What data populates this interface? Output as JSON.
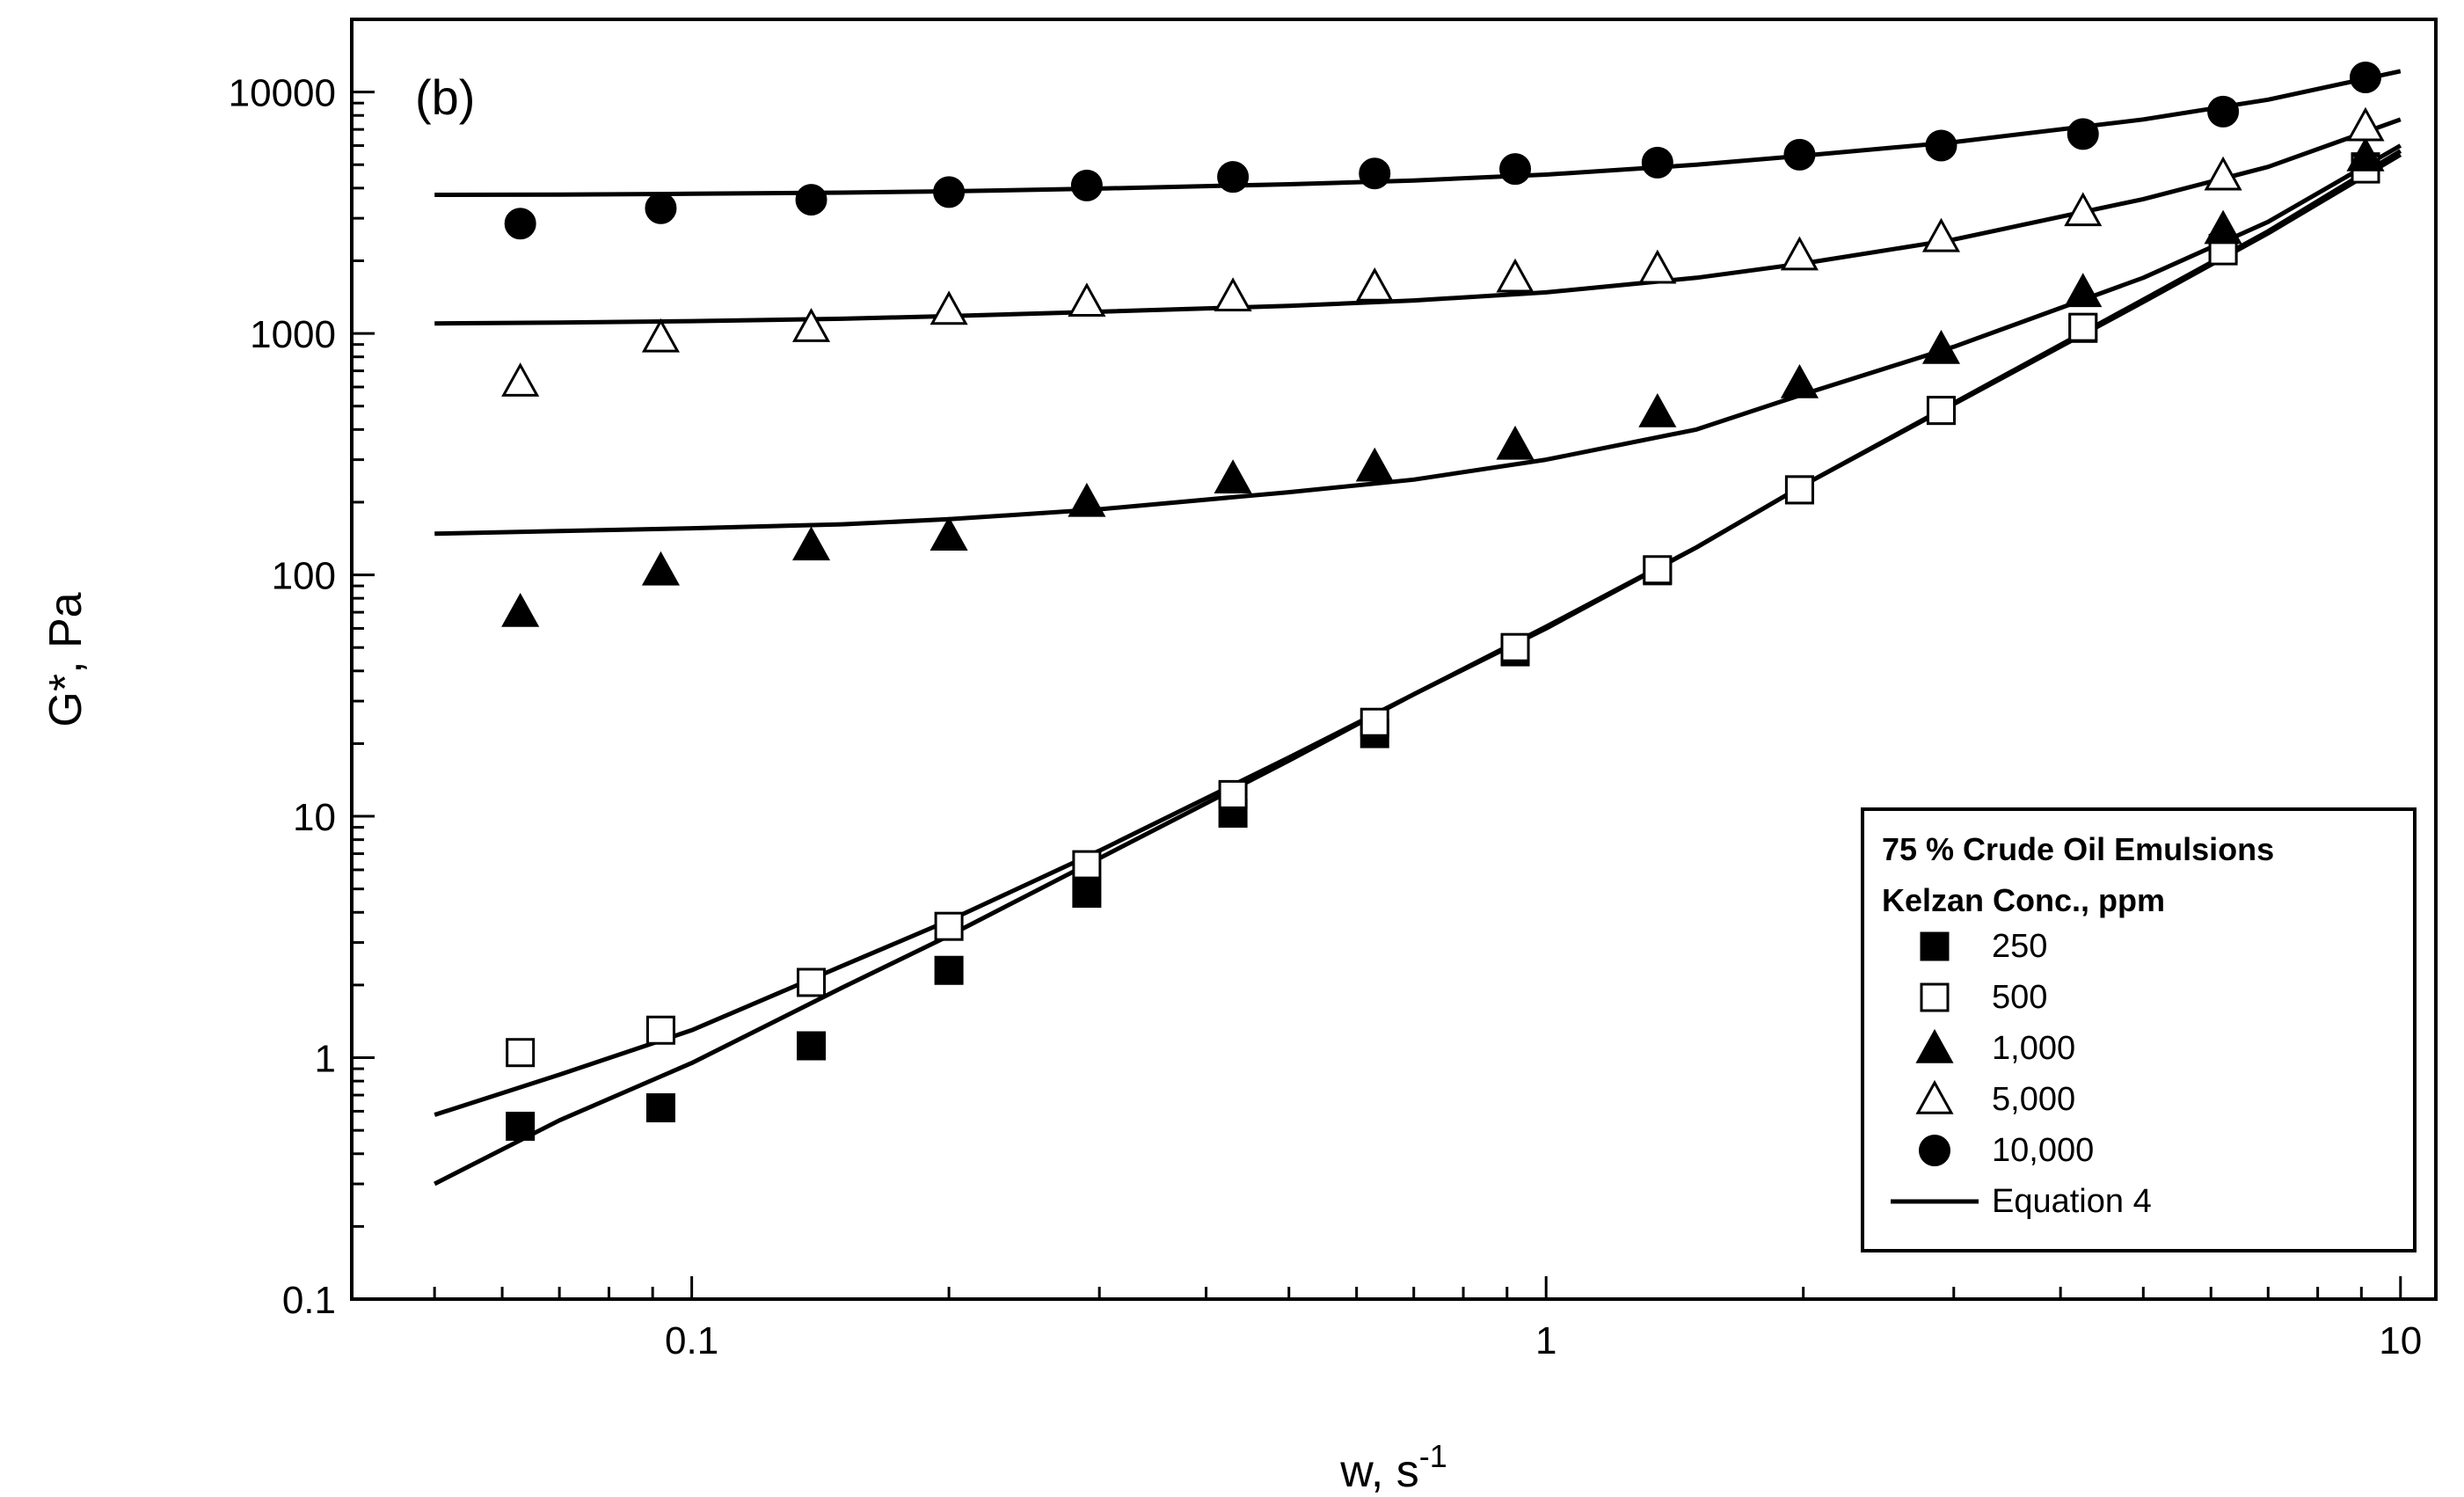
{
  "chart_data": {
    "type": "scatter",
    "panel_label": "(b)",
    "xlabel": "w, s",
    "xlabel_superscript": "-1",
    "ylabel": "G*, Pa",
    "x_scale": "log",
    "y_scale": "log",
    "xlim": [
      0.04,
      11
    ],
    "ylim": [
      0.1,
      20000
    ],
    "x_ticks": [
      {
        "value": 0.1,
        "label": "0.1"
      },
      {
        "value": 1,
        "label": "1"
      },
      {
        "value": 10,
        "label": "10"
      }
    ],
    "y_ticks": [
      {
        "value": 0.1,
        "label": "0.1"
      },
      {
        "value": 1,
        "label": "1"
      },
      {
        "value": 10,
        "label": "10"
      },
      {
        "value": 100,
        "label": "100"
      },
      {
        "value": 1000,
        "label": "1000"
      },
      {
        "value": 10000,
        "label": "10000"
      }
    ],
    "legend": {
      "title_line1": "75 % Crude Oil Emulsions",
      "title_line2": "Kelzan Conc., ppm",
      "placement": "bottom-right"
    },
    "series": [
      {
        "name": "250",
        "marker": "square-filled",
        "x": [
          0.063,
          0.092,
          0.138,
          0.2,
          0.29,
          0.43,
          0.63,
          0.92,
          1.35,
          1.98,
          2.9,
          4.25,
          6.2,
          9.1
        ],
        "y": [
          0.52,
          0.62,
          1.12,
          2.3,
          4.8,
          10.3,
          22,
          48,
          104,
          225,
          480,
          1050,
          2250,
          4900
        ]
      },
      {
        "name": "500",
        "marker": "square-open",
        "x": [
          0.063,
          0.092,
          0.138,
          0.2,
          0.29,
          0.43,
          0.63,
          0.92,
          1.35,
          1.98,
          2.9,
          4.25,
          6.2,
          9.1
        ],
        "y": [
          1.05,
          1.3,
          2.05,
          3.5,
          6.3,
          12.3,
          24.5,
          50,
          105,
          225,
          480,
          1060,
          2200,
          4800
        ]
      },
      {
        "name": "1,000",
        "marker": "triangle-filled",
        "x": [
          0.063,
          0.092,
          0.138,
          0.2,
          0.29,
          0.43,
          0.63,
          0.92,
          1.35,
          1.98,
          2.9,
          4.25,
          6.2,
          9.1
        ],
        "y": [
          70,
          104,
          132,
          145,
          200,
          250,
          280,
          345,
          470,
          620,
          860,
          1480,
          2700,
          5400
        ]
      },
      {
        "name": "5,000",
        "marker": "triangle-open",
        "x": [
          0.063,
          0.092,
          0.138,
          0.2,
          0.29,
          0.43,
          0.63,
          0.92,
          1.35,
          1.98,
          2.9,
          4.25,
          6.2,
          9.1
        ],
        "y": [
          630,
          960,
          1060,
          1250,
          1350,
          1420,
          1560,
          1700,
          1850,
          2100,
          2500,
          3200,
          4500,
          7200
        ]
      },
      {
        "name": "10,000",
        "marker": "circle-filled",
        "x": [
          0.063,
          0.092,
          0.138,
          0.2,
          0.29,
          0.43,
          0.63,
          0.92,
          1.35,
          1.98,
          2.9,
          4.25,
          6.2,
          9.1
        ],
        "y": [
          2850,
          3300,
          3580,
          3850,
          4100,
          4450,
          4600,
          4800,
          5100,
          5500,
          6000,
          6700,
          8300,
          11500
        ]
      }
    ],
    "fit_lines": {
      "name": "Equation 4",
      "curves": [
        {
          "for": "250",
          "x": [
            0.05,
            0.07,
            0.1,
            0.15,
            0.2,
            0.3,
            0.5,
            0.7,
            1,
            1.5,
            2,
            3,
            5,
            7,
            10
          ],
          "y": [
            0.3,
            0.55,
            0.95,
            1.95,
            3.2,
            6.7,
            17,
            32,
            60,
            130,
            235,
            510,
            1350,
            2600,
            5500
          ]
        },
        {
          "for": "500",
          "x": [
            0.05,
            0.07,
            0.1,
            0.15,
            0.2,
            0.3,
            0.5,
            0.7,
            1,
            1.5,
            2,
            3,
            5,
            7,
            10
          ],
          "y": [
            0.58,
            0.85,
            1.3,
            2.4,
            3.7,
            7.2,
            17.5,
            32,
            61,
            130,
            235,
            515,
            1380,
            2650,
            5700
          ]
        },
        {
          "for": "1,000",
          "x": [
            0.05,
            0.07,
            0.1,
            0.15,
            0.2,
            0.3,
            0.5,
            0.7,
            1,
            1.5,
            2,
            3,
            5,
            7,
            10
          ],
          "y": [
            148,
            152,
            156,
            162,
            170,
            187,
            220,
            248,
            300,
            400,
            560,
            880,
            1700,
            2900,
            6000
          ]
        },
        {
          "for": "5,000",
          "x": [
            0.05,
            0.07,
            0.1,
            0.15,
            0.2,
            0.3,
            0.5,
            0.7,
            1,
            1.5,
            2,
            3,
            5,
            7,
            10
          ],
          "y": [
            1100,
            1110,
            1125,
            1150,
            1180,
            1230,
            1300,
            1370,
            1480,
            1700,
            1950,
            2450,
            3600,
            4900,
            7700
          ]
        },
        {
          "for": "10,000",
          "x": [
            0.05,
            0.07,
            0.1,
            0.15,
            0.2,
            0.3,
            0.5,
            0.7,
            1,
            1.5,
            2,
            3,
            5,
            7,
            10
          ],
          "y": [
            3750,
            3760,
            3790,
            3830,
            3880,
            3980,
            4150,
            4300,
            4550,
            5000,
            5450,
            6200,
            7700,
            9300,
            12200
          ]
        }
      ]
    }
  }
}
